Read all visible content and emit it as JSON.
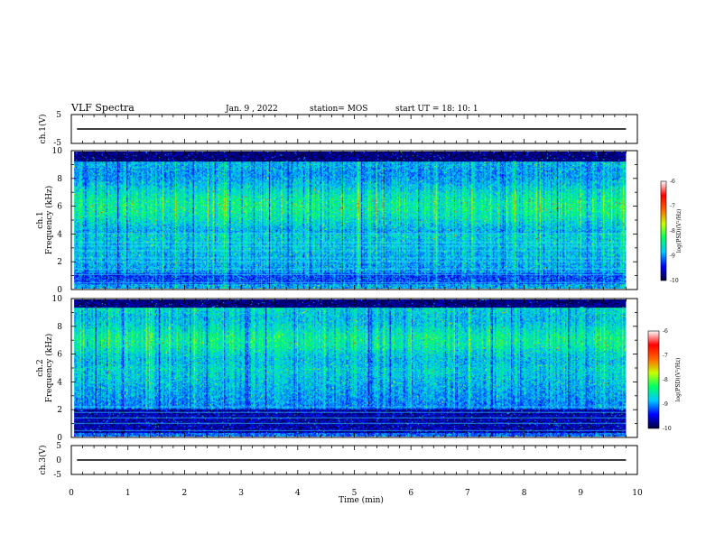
{
  "header": {
    "title": "VLF Spectra",
    "date": "Jan. 9 , 2022",
    "station": "station= MOS",
    "start_ut": "start UT =  18: 10: 1"
  },
  "chart_data": [
    {
      "type": "line",
      "id": "ch1-voltage",
      "ylabel": "ch.1(V)",
      "ylim": [
        -5,
        5
      ],
      "yticks": [
        "5",
        "-5"
      ],
      "xlim": [
        0,
        10
      ],
      "series": [
        {
          "x": [
            0.1,
            9.8
          ],
          "y": [
            0,
            0
          ]
        }
      ],
      "color": "#000000"
    },
    {
      "type": "heatmap",
      "id": "ch1-spectrogram",
      "ylabel": "ch.1\nFrequency (kHz)",
      "ylim": [
        0,
        10
      ],
      "yticks": [
        "0",
        "2",
        "4",
        "6",
        "8",
        "10"
      ],
      "xlim": [
        0,
        10
      ],
      "data_xrange": [
        0.05,
        9.8
      ],
      "colorbar": {
        "title": "log(PSD)(V²/Hz)",
        "range": [
          -10,
          -6
        ],
        "ticks": [
          "-6",
          "-7",
          "-8",
          "-9",
          "-10"
        ],
        "colors": [
          "#00003c",
          "#0000ff",
          "#00c8ff",
          "#00ff64",
          "#c8ff00",
          "#ff6400",
          "#ff0000",
          "#ffffff"
        ]
      }
    },
    {
      "type": "heatmap",
      "id": "ch2-spectrogram",
      "ylabel": "ch.2\nFrequency (kHz)",
      "ylim": [
        0,
        10
      ],
      "yticks": [
        "0",
        "2",
        "4",
        "6",
        "8",
        "10"
      ],
      "xlim": [
        0,
        10
      ],
      "data_xrange": [
        0.05,
        9.8
      ],
      "colorbar": {
        "title": "log(PSD)(V²/Hz)",
        "range": [
          -10,
          -6
        ],
        "ticks": [
          "-6",
          "-7",
          "-8",
          "-9",
          "-10"
        ],
        "colors": [
          "#00003c",
          "#0000ff",
          "#00c8ff",
          "#00ff64",
          "#c8ff00",
          "#ff6400",
          "#ff0000",
          "#ffffff"
        ]
      }
    },
    {
      "type": "line",
      "id": "ch3-voltage",
      "ylabel": "ch.3(V)",
      "ylim": [
        -5,
        5
      ],
      "yticks": [
        "5",
        "0",
        "-5"
      ],
      "xlim": [
        0,
        10
      ],
      "xlabel": "Time  (min)",
      "xticks": [
        "0",
        "1",
        "2",
        "3",
        "4",
        "5",
        "6",
        "7",
        "8",
        "9",
        "10"
      ],
      "series": [
        {
          "x": [
            0.1,
            9.8
          ],
          "y": [
            0,
            0
          ]
        }
      ],
      "color": "#000000"
    }
  ]
}
